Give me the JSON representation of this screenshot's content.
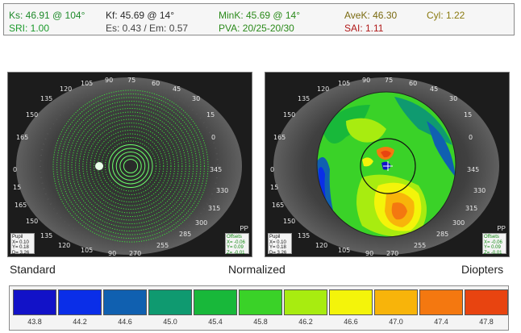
{
  "header": {
    "ks": "Ks: 46.91 @ 104°",
    "kf": "Kf: 45.69 @ 14°",
    "mink": "MinK: 45.69 @ 14°",
    "avek": "AveK: 46.30",
    "cyl": "Cyl: 1.22",
    "sri": "SRI: 1.00",
    "es": "Es: 0.43 / Em: 0.57",
    "pva": "PVA: 20/25-20/30",
    "sai": "SAI: 1.11"
  },
  "left_map": {
    "degrees": [
      "90",
      "75",
      "105",
      "60",
      "120",
      "135",
      "45",
      "150",
      "30",
      "165",
      "15",
      "0",
      "0",
      "15",
      "345",
      "165",
      "330",
      "150",
      "315",
      "135",
      "300",
      "120",
      "285",
      "105",
      "255",
      "270",
      "90"
    ],
    "pp": "PP",
    "pupil": {
      "title": "Pupil",
      "x": "X= 0.10",
      "y": "Y= 0.18",
      "d": "D= 3.26"
    },
    "offsets": {
      "title": "Offsets",
      "x": "X= -0.06",
      "y": "Y= 0.09",
      "z": "Z= -0.01"
    }
  },
  "right_map": {
    "degrees": [
      "90",
      "75",
      "105",
      "60",
      "120",
      "135",
      "45",
      "150",
      "30",
      "165",
      "15",
      "0",
      "0",
      "15",
      "345",
      "165",
      "330",
      "150",
      "315",
      "135",
      "300",
      "120",
      "285",
      "105",
      "255",
      "270",
      "90"
    ],
    "pp": "PP",
    "pupil": {
      "title": "Pupil",
      "x": "X= 0.10",
      "y": "Y= 0.18",
      "d": "D= 3.26"
    },
    "offsets": {
      "title": "Offsets",
      "x": "X= -0.06",
      "y": "Y= 0.09",
      "z": "Z= -0.01"
    }
  },
  "view_labels": {
    "standard": "Standard",
    "normalized": "Normalized",
    "diopters": "Diopters"
  },
  "scale": [
    {
      "value": "43.8",
      "color": "#1212c8"
    },
    {
      "value": "44.2",
      "color": "#0a2ee8"
    },
    {
      "value": "44.6",
      "color": "#1060b0"
    },
    {
      "value": "45.0",
      "color": "#0f9a70"
    },
    {
      "value": "45.4",
      "color": "#18b83a"
    },
    {
      "value": "45.8",
      "color": "#3ad228"
    },
    {
      "value": "46.2",
      "color": "#a8ec10"
    },
    {
      "value": "46.6",
      "color": "#f4f40a"
    },
    {
      "value": "47.0",
      "color": "#f8b40a"
    },
    {
      "value": "47.4",
      "color": "#f47810"
    },
    {
      "value": "47.8",
      "color": "#e84410"
    }
  ]
}
